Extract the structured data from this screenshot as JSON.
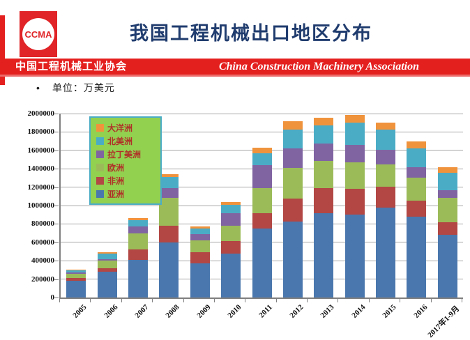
{
  "header": {
    "logo_text": "CCMA",
    "title": "我国工程机械出口地区分布",
    "banner_cn": "中国工程机械工业协会",
    "banner_en": "China Construction Machinery Association"
  },
  "note": {
    "bullet": "•",
    "text": "单位：万美元"
  },
  "chart_data": {
    "type": "bar",
    "stacked": true,
    "title": "我国工程机械出口地区分布",
    "unit": "万美元",
    "categories": [
      "2005",
      "2006",
      "2007",
      "2008",
      "2009",
      "2010",
      "2011",
      "2012",
      "2013",
      "2014",
      "2015",
      "2016",
      "2017年1-9月"
    ],
    "series": [
      {
        "name": "亚洲",
        "color": "#4a77ad",
        "values": [
          185000,
          280000,
          410000,
          600000,
          370000,
          474000,
          752000,
          827000,
          916000,
          903000,
          978000,
          878000,
          681000
        ]
      },
      {
        "name": "非洲",
        "color": "#b24744",
        "values": [
          25000,
          40000,
          110000,
          177000,
          125000,
          139000,
          164000,
          252000,
          277000,
          277000,
          227000,
          177000,
          134000
        ]
      },
      {
        "name": "欧洲",
        "color": "#9bbb59",
        "values": [
          50000,
          85000,
          180000,
          303000,
          125000,
          169000,
          277000,
          328000,
          290000,
          290000,
          240000,
          252000,
          265000
        ]
      },
      {
        "name": "拉丁美洲",
        "color": "#8064a2",
        "values": [
          10000,
          15000,
          70000,
          113000,
          67000,
          134000,
          250000,
          214000,
          189000,
          189000,
          164000,
          113000,
          88000
        ]
      },
      {
        "name": "北美洲",
        "color": "#4bacc6",
        "values": [
          25000,
          60000,
          72000,
          121000,
          61000,
          89000,
          126000,
          202000,
          202000,
          240000,
          214000,
          202000,
          189000
        ]
      },
      {
        "name": "大洋洲",
        "color": "#f0933d",
        "values": [
          5000,
          15000,
          23000,
          26000,
          22000,
          30000,
          63000,
          96000,
          83000,
          86000,
          81000,
          76000,
          63000
        ]
      }
    ],
    "ylim": [
      0,
      2000000
    ],
    "ytick_step": 200000,
    "yticks": [
      "0",
      "200000",
      "400000",
      "600000",
      "800000",
      "1000000",
      "1200000",
      "1400000",
      "1600000",
      "1800000",
      "2000000"
    ],
    "grid": true,
    "legend": {
      "position": "top-left-inside",
      "order_top_to_bottom": [
        "大洋洲",
        "北美洲",
        "拉丁美洲",
        "欧洲",
        "非洲",
        "亚洲"
      ],
      "bg": "#92d050",
      "border": "#4bacc6",
      "text_color": "#b03028"
    }
  }
}
